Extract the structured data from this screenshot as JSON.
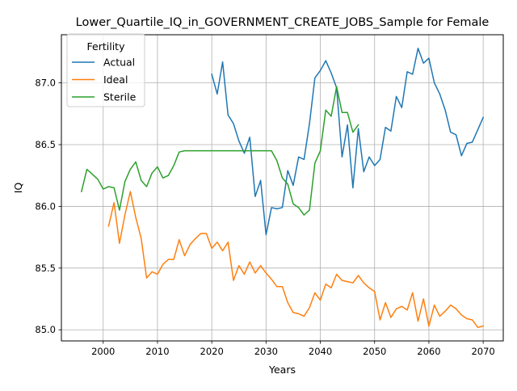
{
  "chart_data": {
    "type": "line",
    "title": "Lower_Quartile_IQ_in_GOVERNMENT_CREATE_JOBS_Sample for Female",
    "xlabel": "Years",
    "ylabel": "IQ",
    "xlim": [
      1992.3,
      2073.7
    ],
    "ylim": [
      84.91,
      87.39
    ],
    "xticks": [
      2000,
      2010,
      2020,
      2030,
      2040,
      2050,
      2060,
      2070
    ],
    "yticks": [
      85.0,
      85.5,
      86.0,
      86.5,
      87.0
    ],
    "xtick_labels": [
      "2000",
      "2010",
      "2020",
      "2030",
      "2040",
      "2050",
      "2060",
      "2070"
    ],
    "ytick_labels": [
      "85.0",
      "85.5",
      "86.0",
      "86.5",
      "87.0"
    ],
    "grid": true,
    "legend": {
      "title": "Fertility",
      "placement": "upper-left"
    },
    "series": [
      {
        "name": "Actual",
        "color": "#1f77b4",
        "x": [
          2020,
          2021,
          2022,
          2023,
          2024,
          2025,
          2026,
          2027,
          2028,
          2029,
          2030,
          2031,
          2032,
          2033,
          2034,
          2035,
          2036,
          2037,
          2038,
          2039,
          2040,
          2041,
          2042,
          2043,
          2044,
          2045,
          2046,
          2047,
          2048,
          2049,
          2050,
          2051,
          2052,
          2053,
          2054,
          2055,
          2056,
          2057,
          2058,
          2059,
          2060,
          2061,
          2062,
          2063,
          2064,
          2065,
          2066,
          2067,
          2068,
          2069,
          2070
        ],
        "values": [
          87.07,
          86.91,
          87.17,
          86.74,
          86.67,
          86.53,
          86.43,
          86.56,
          86.08,
          86.21,
          85.77,
          85.99,
          85.98,
          85.99,
          86.29,
          86.17,
          86.4,
          86.38,
          86.67,
          87.04,
          87.1,
          87.18,
          87.08,
          86.96,
          86.4,
          86.66,
          86.15,
          86.63,
          86.28,
          86.4,
          86.33,
          86.38,
          86.64,
          86.61,
          86.89,
          86.8,
          87.09,
          87.07,
          87.28,
          87.16,
          87.2,
          87.0,
          86.91,
          86.78,
          86.6,
          86.58,
          86.41,
          86.51,
          86.52,
          86.62,
          86.72
        ]
      },
      {
        "name": "Ideal",
        "color": "#ff7f0e",
        "x": [
          2001,
          2002,
          2003,
          2004,
          2005,
          2006,
          2007,
          2008,
          2009,
          2010,
          2011,
          2012,
          2013,
          2014,
          2015,
          2016,
          2017,
          2018,
          2019,
          2020,
          2021,
          2022,
          2023,
          2024,
          2025,
          2026,
          2027,
          2028,
          2029,
          2030,
          2031,
          2032,
          2033,
          2034,
          2035,
          2036,
          2037,
          2038,
          2039,
          2040,
          2041,
          2042,
          2043,
          2044,
          2045,
          2046,
          2047,
          2048,
          2049,
          2050,
          2051,
          2052,
          2053,
          2054,
          2055,
          2056,
          2057,
          2058,
          2059,
          2060,
          2061,
          2062,
          2063,
          2064,
          2065,
          2066,
          2067,
          2068,
          2069,
          2070
        ],
        "values": [
          85.84,
          86.03,
          85.7,
          85.93,
          86.12,
          85.91,
          85.74,
          85.42,
          85.47,
          85.45,
          85.53,
          85.57,
          85.57,
          85.73,
          85.6,
          85.69,
          85.74,
          85.78,
          85.78,
          85.66,
          85.71,
          85.64,
          85.71,
          85.4,
          85.52,
          85.45,
          85.55,
          85.46,
          85.52,
          85.46,
          85.41,
          85.35,
          85.35,
          85.22,
          85.14,
          85.13,
          85.11,
          85.18,
          85.3,
          85.24,
          85.37,
          85.34,
          85.45,
          85.4,
          85.39,
          85.38,
          85.44,
          85.38,
          85.34,
          85.31,
          85.08,
          85.22,
          85.1,
          85.17,
          85.19,
          85.16,
          85.3,
          85.07,
          85.25,
          85.03,
          85.2,
          85.11,
          85.15,
          85.2,
          85.17,
          85.12,
          85.09,
          85.08,
          85.02,
          85.03
        ]
      },
      {
        "name": "Sterile",
        "color": "#2ca02c",
        "x": [
          1996,
          1997,
          1998,
          1999,
          2000,
          2001,
          2002,
          2003,
          2004,
          2005,
          2006,
          2007,
          2008,
          2009,
          2010,
          2011,
          2012,
          2013,
          2014,
          2015,
          2016,
          2017,
          2018,
          2019,
          2020,
          2021,
          2022,
          2023,
          2024,
          2025,
          2026,
          2027,
          2028,
          2029,
          2030,
          2031,
          2032,
          2033,
          2034,
          2035,
          2036,
          2037,
          2038,
          2039,
          2040,
          2041,
          2042,
          2043,
          2044,
          2045,
          2046,
          2047
        ],
        "values": [
          86.12,
          86.3,
          86.26,
          86.22,
          86.14,
          86.16,
          86.15,
          85.97,
          86.2,
          86.3,
          86.36,
          86.21,
          86.16,
          86.27,
          86.32,
          86.23,
          86.25,
          86.33,
          86.44,
          86.45,
          86.45,
          86.45,
          86.45,
          86.45,
          86.45,
          86.45,
          86.45,
          86.45,
          86.45,
          86.45,
          86.45,
          86.45,
          86.45,
          86.45,
          86.45,
          86.45,
          86.37,
          86.23,
          86.18,
          86.02,
          85.99,
          85.93,
          85.97,
          86.35,
          86.45,
          86.78,
          86.73,
          86.97,
          86.76,
          86.76,
          86.6,
          86.66
        ]
      }
    ]
  }
}
